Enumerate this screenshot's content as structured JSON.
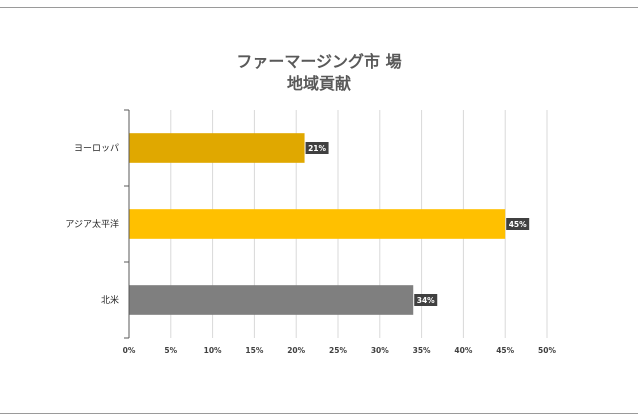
{
  "chart_data": {
    "type": "bar",
    "orientation": "horizontal",
    "title": "ファーマージング市 場",
    "subtitle": "地域貢献",
    "categories": [
      "ヨーロッパ",
      "アジア太平洋",
      "北米"
    ],
    "values": [
      21,
      45,
      34
    ],
    "value_labels": [
      "21%",
      "45%",
      "34%"
    ],
    "bar_colors": [
      "#E0A800",
      "#FFC000",
      "#7F7F7F"
    ],
    "xlim": [
      0,
      50
    ],
    "xticks": [
      0,
      5,
      10,
      15,
      20,
      25,
      30,
      35,
      40,
      45,
      50
    ],
    "xtick_labels": [
      "0%",
      "5%",
      "10%",
      "15%",
      "20%",
      "25%",
      "30%",
      "35%",
      "40%",
      "45%",
      "50%"
    ],
    "grid": true,
    "legend": "none"
  }
}
